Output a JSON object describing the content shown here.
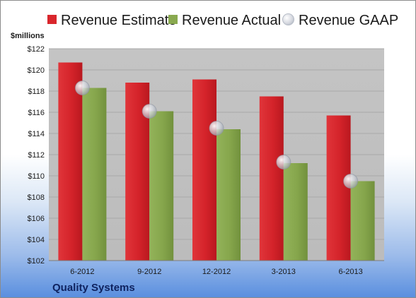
{
  "legend": {
    "estimate": "Revenue Estimate",
    "actual": "Revenue Actual",
    "gaap": "Revenue GAAP"
  },
  "unit_label": "$millions",
  "company": "Quality Systems",
  "colors": {
    "estimate": "#d9262c",
    "actual": "#89a94f",
    "gaap": "#c8ccd4",
    "plot_bg": "#c0c0c0"
  },
  "chart_data": {
    "type": "bar",
    "categories": [
      "6-2012",
      "9-2012",
      "12-2012",
      "3-2013",
      "6-2013"
    ],
    "series": [
      {
        "name": "Revenue Estimate",
        "values": [
          120.7,
          118.8,
          119.1,
          117.5,
          115.7
        ]
      },
      {
        "name": "Revenue Actual",
        "values": [
          118.3,
          116.1,
          114.4,
          111.2,
          109.5
        ]
      },
      {
        "name": "Revenue GAAP",
        "values": [
          118.3,
          116.1,
          114.5,
          111.3,
          109.5
        ]
      }
    ],
    "ylabel": "$millions",
    "ylim": [
      102,
      122
    ],
    "yticks": [
      "$102",
      "$104",
      "$106",
      "$108",
      "$110",
      "$112",
      "$114",
      "$116",
      "$118",
      "$120",
      "$122"
    ],
    "grid": true,
    "legend_position": "top"
  }
}
